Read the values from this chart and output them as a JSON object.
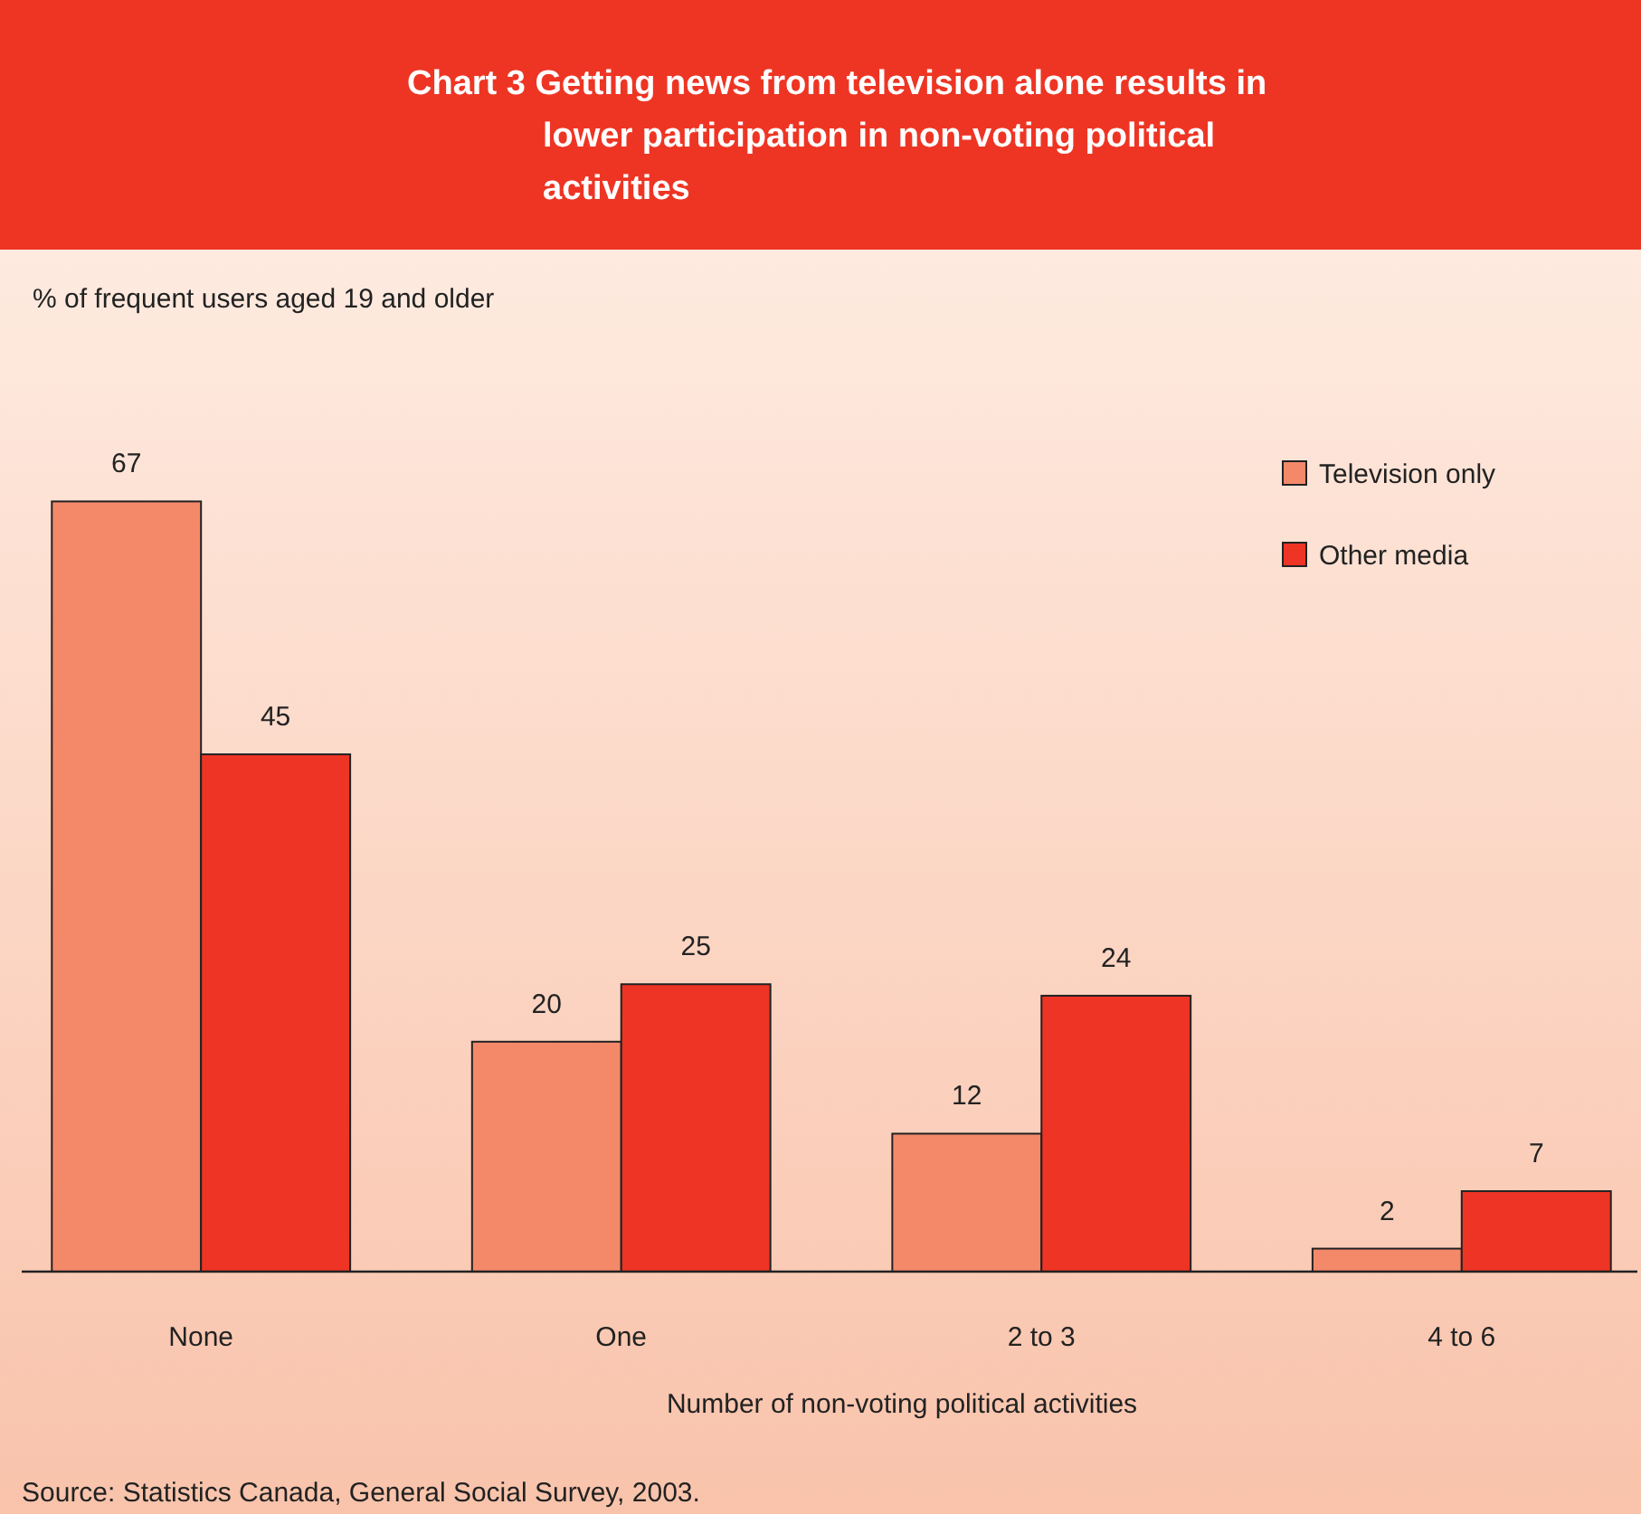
{
  "chart_data": {
    "type": "bar",
    "title": "Chart 3  Getting news from television alone results in lower participation in non-voting political activities",
    "xlabel": "Number of non-voting political activities",
    "categories": [
      "None",
      "One",
      "2 to 3",
      "4 to 6"
    ],
    "series": [
      {
        "name": "Television only",
        "color": "#f4896a",
        "values": [
          67,
          20,
          12,
          2
        ]
      },
      {
        "name": "Other media",
        "color": "#ee3424",
        "values": [
          45,
          25,
          24,
          7
        ]
      }
    ],
    "data_labels": true,
    "legend": "top right",
    "grid": false,
    "annotations": [
      "% of frequent users aged 19 and older",
      "Source: Statistics Canada, General Social Survey, 2003."
    ]
  }
}
